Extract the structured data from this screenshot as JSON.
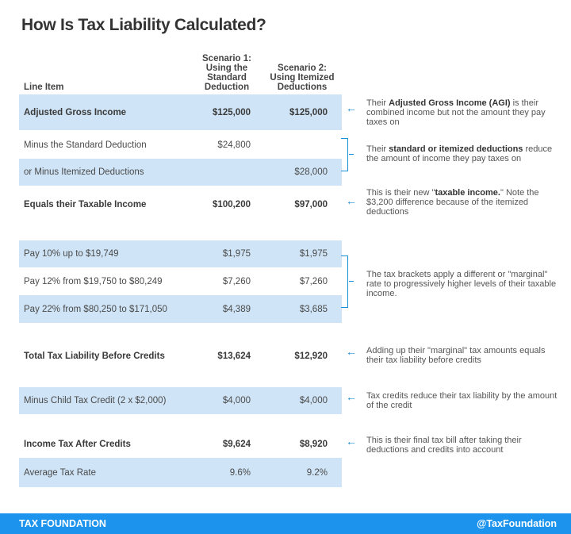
{
  "title": "How Is Tax Liability Calculated?",
  "headers": {
    "line_item": "Line Item",
    "scenario1": [
      "Scenario 1:",
      "Using the",
      "Standard",
      "Deduction"
    ],
    "scenario2": [
      "Scenario 2:",
      "Using Itemized",
      "Deductions"
    ]
  },
  "colors": {
    "row_highlight": "#cfe4f6",
    "accent": "#1a8fd8",
    "footer": "#1c93ec"
  },
  "rows": [
    {
      "label": "Adjusted Gross Income",
      "s1": "$125,000",
      "s2": "$125,000",
      "bold": true,
      "highlight": true
    },
    {
      "label": "Minus the Standard Deduction",
      "s1": "$24,800",
      "s2": "",
      "bold": false,
      "highlight": false
    },
    {
      "label": "or Minus Itemized Deductions",
      "s1": "",
      "s2": "$28,000",
      "bold": false,
      "highlight": true
    },
    {
      "label": "Equals their Taxable Income",
      "s1": "$100,200",
      "s2": "$97,000",
      "bold": true,
      "highlight": false
    },
    {
      "label": "Pay 10% up to $19,749",
      "s1": "$1,975",
      "s2": "$1,975",
      "bold": false,
      "highlight": true
    },
    {
      "label": "Pay 12% from $19,750 to $80,249",
      "s1": "$7,260",
      "s2": "$7,260",
      "bold": false,
      "highlight": false
    },
    {
      "label": "Pay 22% from $80,250 to $171,050",
      "s1": "$4,389",
      "s2": "$3,685",
      "bold": false,
      "highlight": true
    },
    {
      "label": "Total Tax Liability Before Credits",
      "s1": "$13,624",
      "s2": "$12,920",
      "bold": true,
      "highlight": false
    },
    {
      "label": "Minus Child Tax Credit (2 x $2,000)",
      "s1": "$4,000",
      "s2": "$4,000",
      "bold": false,
      "highlight": true
    },
    {
      "label": "Income Tax After Credits",
      "s1": "$9,624",
      "s2": "$8,920",
      "bold": true,
      "highlight": false
    },
    {
      "label": "Average Tax Rate",
      "s1": "9.6%",
      "s2": "9.2%",
      "bold": false,
      "highlight": true
    }
  ],
  "notes": [
    {
      "pointer": "arrow",
      "segments": [
        {
          "t": "Their "
        },
        {
          "t": "Adjusted Gross Income (AGI)",
          "b": true
        },
        {
          "t": " is their combined income but not the amount they pay taxes on"
        }
      ]
    },
    {
      "pointer": "bracket",
      "segments": [
        {
          "t": "Their "
        },
        {
          "t": "standard or itemized deductions",
          "b": true
        },
        {
          "t": " reduce the amount of income they pay taxes on"
        }
      ]
    },
    {
      "pointer": "arrow",
      "segments": [
        {
          "t": "This is their new \""
        },
        {
          "t": "taxable income.",
          "b": true
        },
        {
          "t": "\" Note the $3,200 difference because of the itemized deductions"
        }
      ]
    },
    {
      "pointer": "bracket",
      "segments": [
        {
          "t": "The tax brackets apply a different or \"marginal\" rate to progressively higher levels of their taxable income."
        }
      ]
    },
    {
      "pointer": "arrow",
      "segments": [
        {
          "t": "Adding up their \"marginal\" tax amounts equals their tax liability before credits"
        }
      ]
    },
    {
      "pointer": "arrow",
      "segments": [
        {
          "t": "Tax credits reduce their tax liability by the amount of the credit"
        }
      ]
    },
    {
      "pointer": "arrow",
      "segments": [
        {
          "t": "This is their final tax bill after taking their deductions and credits into account"
        }
      ]
    }
  ],
  "footer": {
    "brand": "TAX FOUNDATION",
    "handle": "@TaxFoundation"
  }
}
